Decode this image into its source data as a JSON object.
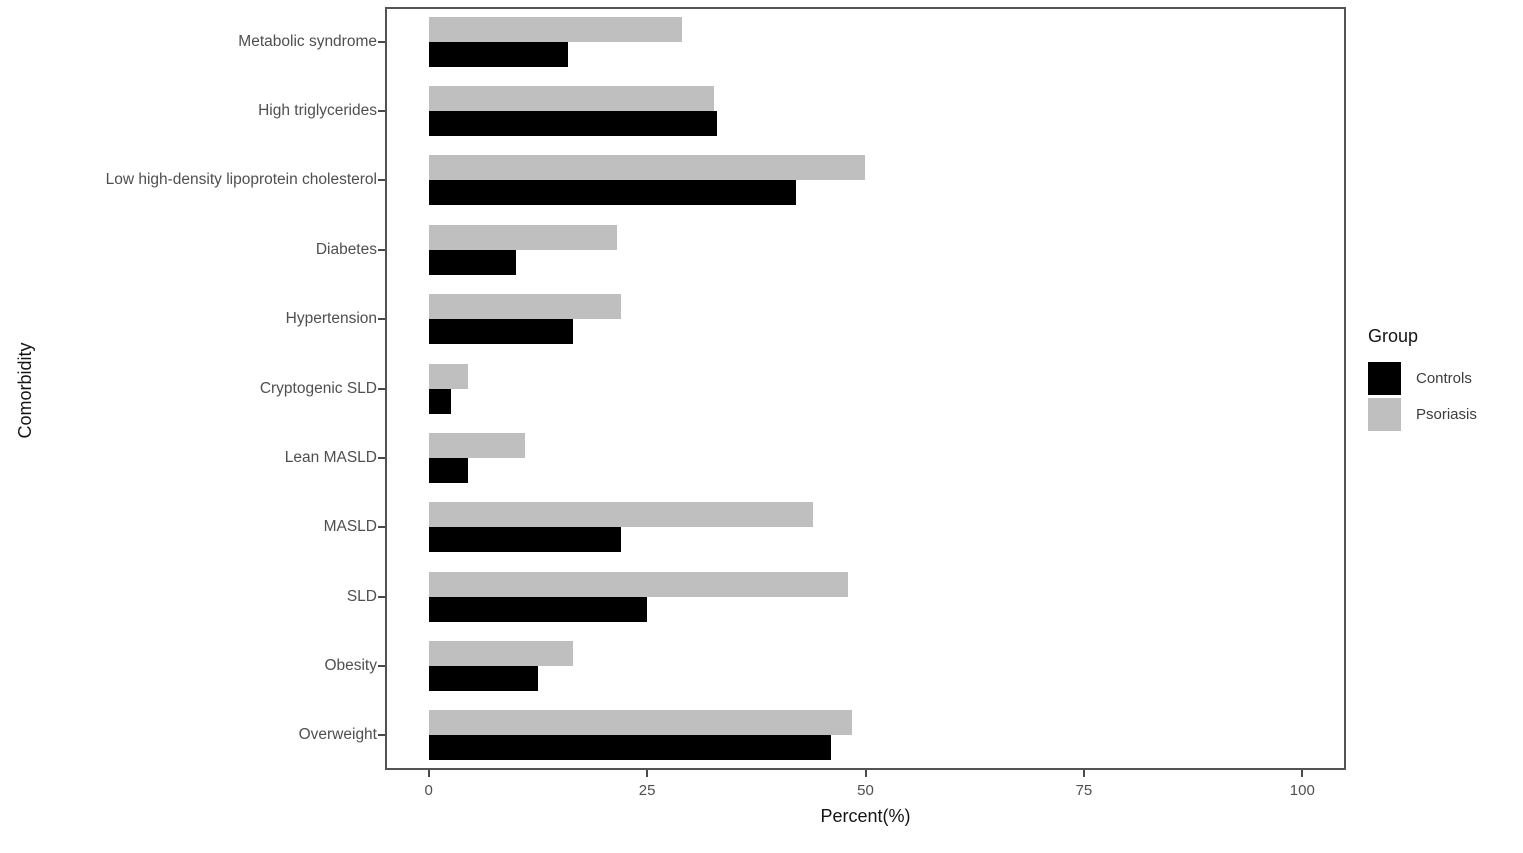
{
  "chart_data": {
    "type": "bar",
    "orientation": "horizontal",
    "xlabel": "Percent(%)",
    "ylabel": "Comorbidity",
    "xlim": [
      0,
      100
    ],
    "x_ticks": [
      0,
      25,
      50,
      75,
      100
    ],
    "axis_expansion_units": 5,
    "grid": false,
    "categories_top_to_bottom": [
      "Metabolic syndrome",
      "High triglycerides",
      "Low high-density lipoprotein cholesterol",
      "Diabetes",
      "Hypertension",
      "Cryptogenic SLD",
      "Lean MASLD",
      "MASLD",
      "SLD",
      "Obesity",
      "Overweight"
    ],
    "series": [
      {
        "name": "Controls",
        "color": "#000000",
        "values": [
          16,
          33,
          42,
          10,
          16.5,
          2.5,
          4.5,
          22,
          25,
          12.5,
          46
        ]
      },
      {
        "name": "Psoriasis",
        "color": "#bfbfbf",
        "values": [
          29,
          32.7,
          50,
          21.5,
          22,
          4.5,
          11,
          44,
          48,
          16.5,
          48.5
        ]
      }
    ],
    "group_draw_order_top_to_bottom": [
      "Psoriasis",
      "Controls"
    ],
    "legend": {
      "title": "Group",
      "position": "right",
      "entries": [
        {
          "label": "Controls",
          "color": "#000000"
        },
        {
          "label": "Psoriasis",
          "color": "#bfbfbf"
        }
      ]
    },
    "colors": {
      "panel_border": "#545454",
      "axis_text": "#4f4f4f",
      "axis_title": "#141414",
      "background": "#ffffff"
    }
  }
}
